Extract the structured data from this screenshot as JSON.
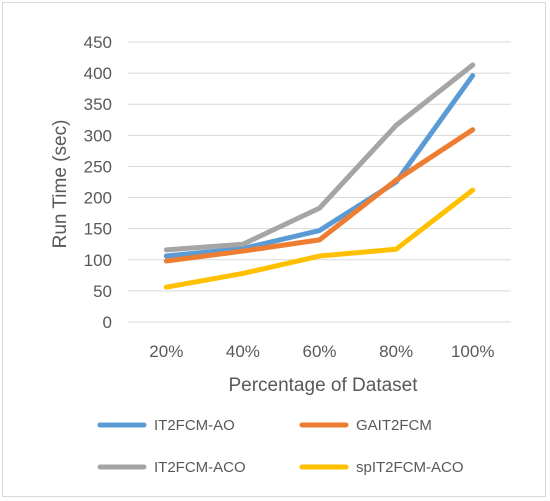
{
  "chart_data": {
    "type": "line",
    "title": "",
    "xlabel": "Percentage of Dataset",
    "ylabel": "Run Time (sec)",
    "categories": [
      "20%",
      "40%",
      "60%",
      "80%",
      "100%"
    ],
    "ylim": [
      0,
      450
    ],
    "yticks": [
      0,
      50,
      100,
      150,
      200,
      250,
      300,
      350,
      400,
      450
    ],
    "grid": true,
    "legend_position": "bottom",
    "series": [
      {
        "name": "IT2FCM-AO",
        "color": "#5b9bd5",
        "values": [
          106,
          118,
          147,
          225,
          396
        ]
      },
      {
        "name": "GAIT2FCM",
        "color": "#ed7d31",
        "values": [
          98,
          114,
          132,
          228,
          309
        ]
      },
      {
        "name": "IT2FCM-ACO",
        "color": "#a5a5a5",
        "values": [
          116,
          125,
          183,
          316,
          413
        ]
      },
      {
        "name": "spIT2FCM-ACO",
        "color": "#ffc000",
        "values": [
          56,
          78,
          106,
          117,
          212
        ]
      }
    ]
  }
}
